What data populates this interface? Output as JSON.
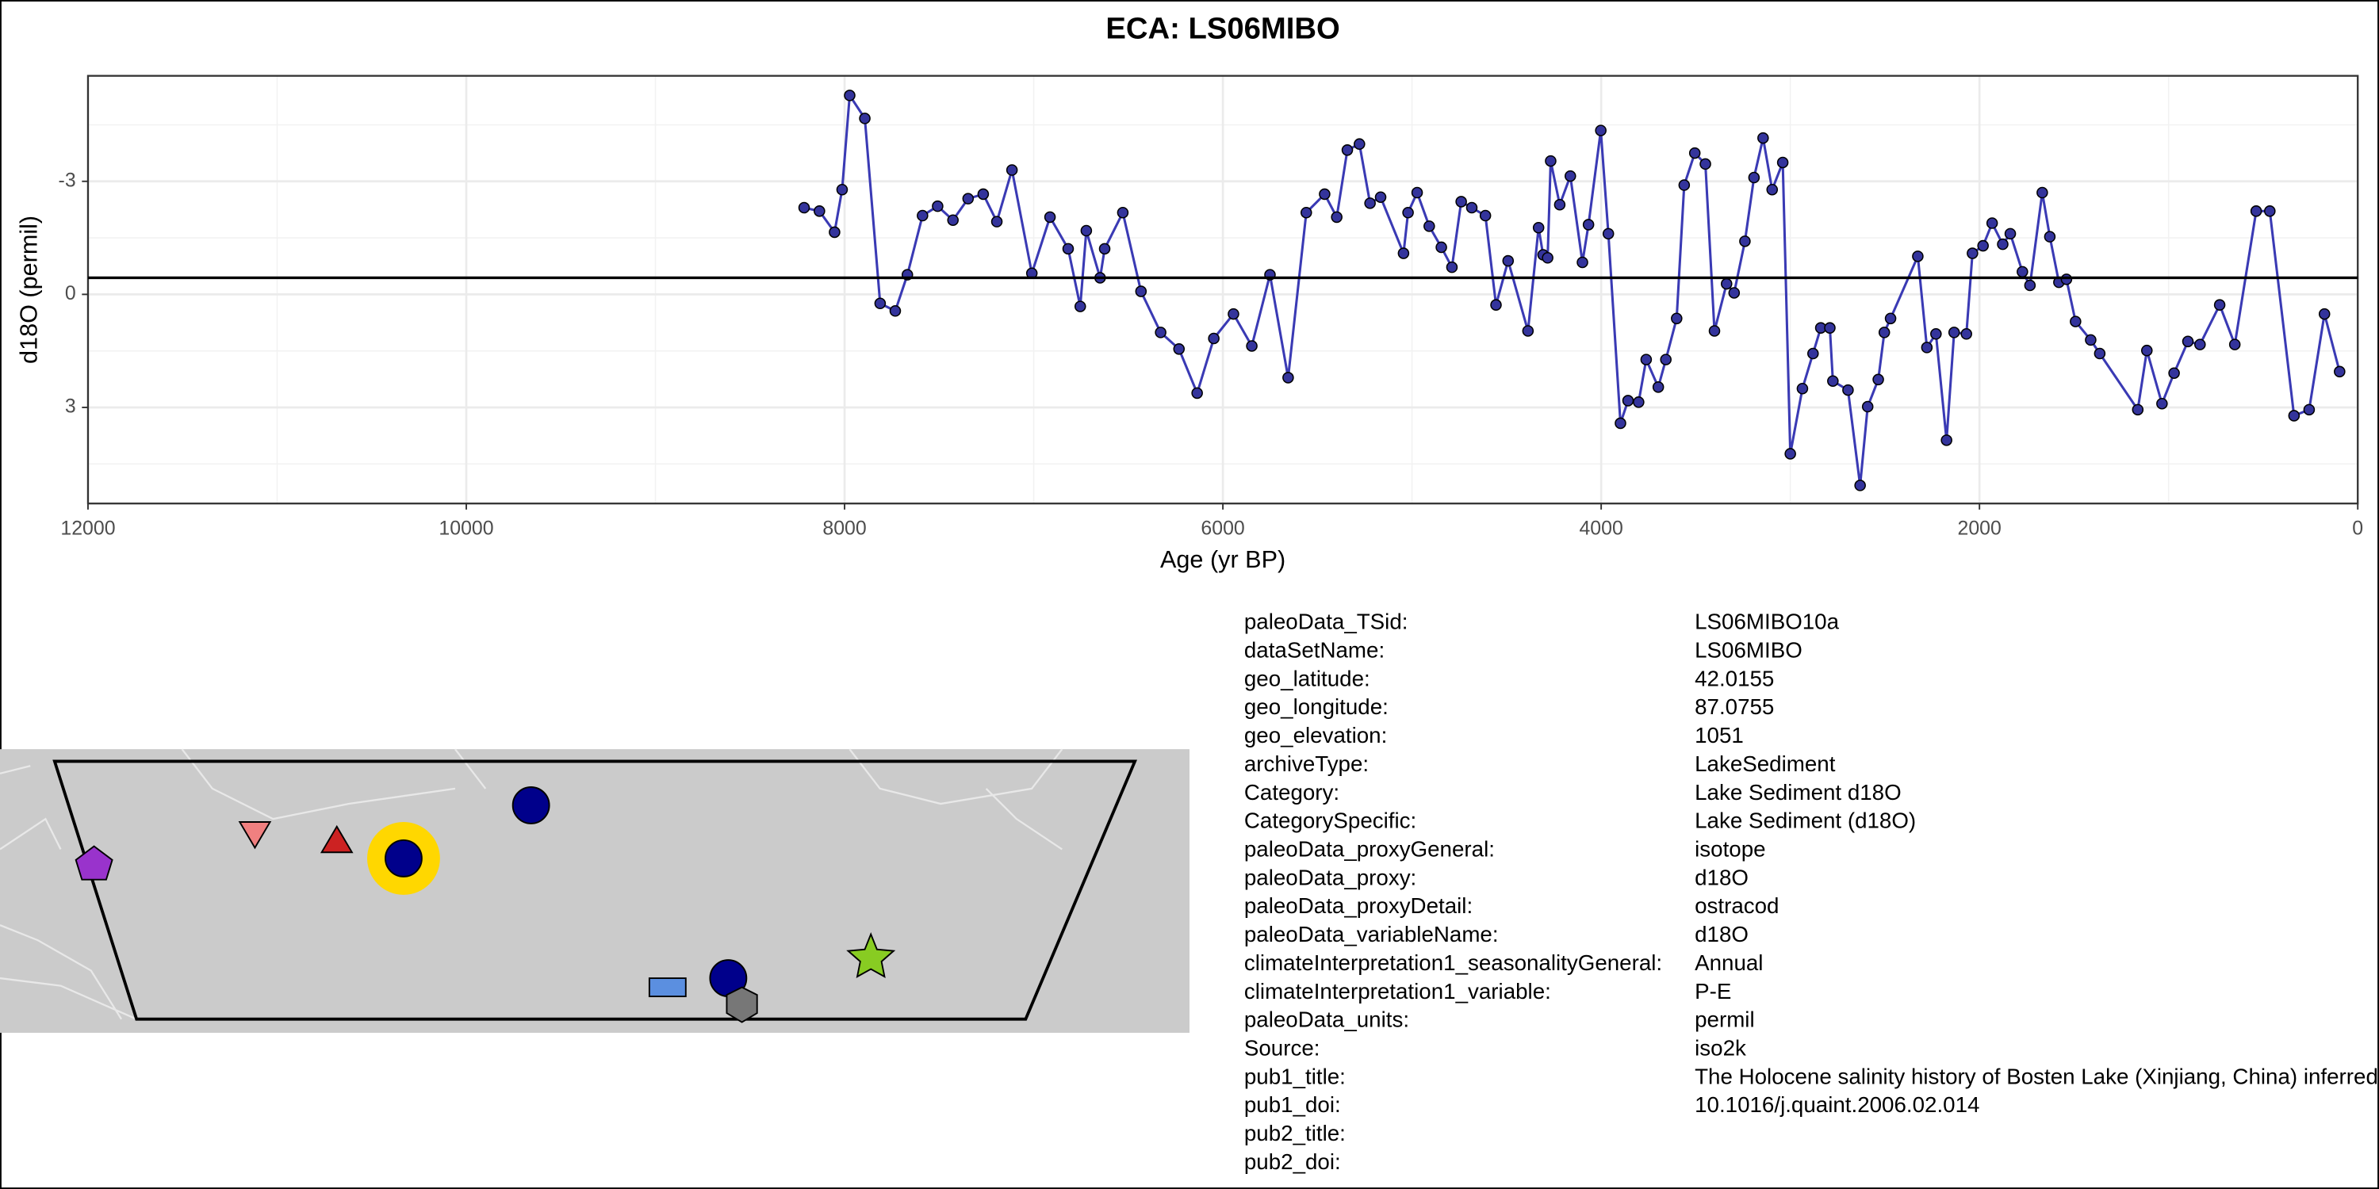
{
  "chart_data": {
    "type": "line",
    "title": "ECA: LS06MIBO",
    "x_label": "Age (yr BP)",
    "y_label": "d18O (permil)",
    "xlim": [
      12000,
      0
    ],
    "ylim": [
      5.55,
      -5.8
    ],
    "xticks": [
      12000,
      10000,
      8000,
      6000,
      4000,
      2000,
      0
    ],
    "yticks": [
      -3,
      0,
      3
    ],
    "x_minor_ticks": [
      11000,
      9000,
      7000,
      5000,
      3000,
      1000
    ],
    "y_minor_ticks": [
      -4.5,
      -1.5,
      1.5,
      4.5
    ],
    "grid": true,
    "mean_line": -0.44,
    "x": [
      8214,
      8133,
      8053,
      8013,
      7973,
      7893,
      7812,
      7732,
      7668,
      7588,
      7508,
      7427,
      7347,
      7267,
      7195,
      7115,
      7010,
      6914,
      6818,
      6754,
      6722,
      6649,
      6625,
      6529,
      6433,
      6329,
      6232,
      6136,
      6048,
      5944,
      5847,
      5751,
      5655,
      5559,
      5462,
      5398,
      5342,
      5278,
      5222,
      5166,
      5045,
      5021,
      4973,
      4909,
      4845,
      4789,
      4740,
      4684,
      4612,
      4556,
      4492,
      4387,
      4331,
      4307,
      4283,
      4267,
      4219,
      4163,
      4099,
      4067,
      4002,
      3962,
      3898,
      3858,
      3802,
      3762,
      3698,
      3658,
      3601,
      3561,
      3505,
      3449,
      3401,
      3337,
      3297,
      3240,
      3192,
      3144,
      3096,
      3040,
      3000,
      2936,
      2880,
      2839,
      2791,
      2775,
      2695,
      2631,
      2591,
      2535,
      2503,
      2470,
      2326,
      2278,
      2230,
      2174,
      2134,
      2069,
      2037,
      1981,
      1933,
      1877,
      1837,
      1773,
      1733,
      1668,
      1628,
      1580,
      1540,
      1492,
      1412,
      1364,
      1163,
      1115,
      1035,
      971,
      898,
      834,
      730,
      650,
      537,
      465,
      337,
      257,
      176,
      96
    ],
    "series": [
      {
        "color": "#3a3ab4",
        "marker_color": "#34349c",
        "values": [
          -2.3,
          -2.21,
          -1.65,
          -2.78,
          -5.28,
          -4.67,
          0.24,
          0.44,
          -0.52,
          -2.09,
          -2.34,
          -1.97,
          -2.54,
          -2.66,
          -1.93,
          -3.3,
          -0.56,
          -2.05,
          -1.21,
          0.32,
          -1.69,
          -0.44,
          -1.21,
          -2.17,
          -0.08,
          1.01,
          1.45,
          2.62,
          1.17,
          0.52,
          1.37,
          -0.52,
          2.21,
          -2.17,
          -2.66,
          -2.05,
          -3.83,
          -3.99,
          -2.42,
          -2.58,
          -1.09,
          -2.17,
          -2.7,
          -1.81,
          -1.25,
          -0.72,
          -2.46,
          -2.3,
          -2.09,
          0.28,
          -0.89,
          0.97,
          -1.77,
          -1.05,
          -0.97,
          -3.54,
          -2.38,
          -3.14,
          -0.85,
          -1.85,
          -4.35,
          -1.61,
          3.42,
          2.82,
          2.86,
          1.73,
          2.46,
          1.73,
          0.64,
          -2.9,
          -3.75,
          -3.46,
          0.97,
          -0.28,
          -0.04,
          -1.41,
          -3.1,
          -4.15,
          -2.78,
          -3.5,
          4.23,
          2.5,
          1.57,
          0.89,
          0.89,
          2.3,
          2.54,
          5.07,
          2.98,
          2.26,
          1.01,
          0.64,
          -1.01,
          1.41,
          1.05,
          3.87,
          1.01,
          1.05,
          -1.09,
          -1.29,
          -1.89,
          -1.33,
          -1.61,
          -0.6,
          -0.24,
          -2.7,
          -1.53,
          -0.32,
          -0.4,
          0.72,
          1.21,
          1.57,
          3.06,
          1.49,
          2.9,
          2.09,
          1.25,
          1.33,
          0.28,
          1.33,
          -2.21,
          -2.21,
          3.22,
          3.06,
          0.52,
          2.05
        ]
      }
    ]
  },
  "metadata": [
    {
      "key": "paleoData_TSid:",
      "value": "LS06MIBO10a"
    },
    {
      "key": "dataSetName:",
      "value": "LS06MIBO"
    },
    {
      "key": "geo_latitude:",
      "value": "42.0155"
    },
    {
      "key": "geo_longitude:",
      "value": "87.0755"
    },
    {
      "key": "geo_elevation:",
      "value": "1051"
    },
    {
      "key": "archiveType:",
      "value": "LakeSediment"
    },
    {
      "key": "Category:",
      "value": "Lake Sediment d18O"
    },
    {
      "key": "CategorySpecific:",
      "value": "Lake Sediment (d18O)"
    },
    {
      "key": "paleoData_proxyGeneral:",
      "value": "isotope"
    },
    {
      "key": "paleoData_proxy:",
      "value": "d18O"
    },
    {
      "key": "paleoData_proxyDetail:",
      "value": "ostracod"
    },
    {
      "key": "paleoData_variableName:",
      "value": "d18O"
    },
    {
      "key": "climateInterpretation1_seasonalityGeneral:",
      "value": "Annual"
    },
    {
      "key": "climateInterpretation1_variable:",
      "value": "P-E"
    },
    {
      "key": "paleoData_units:",
      "value": "permil"
    },
    {
      "key": "Source:",
      "value": "iso2k"
    },
    {
      "key": "pub1_title:",
      "value": "The Holocene salinity history of Bosten Lake (Xinjiang, China) inferred from ostracod species assemblages and shell chemistry"
    },
    {
      "key": "pub1_doi:",
      "value": "10.1016/j.quaint.2006.02.014"
    },
    {
      "key": "pub2_title:"
    },
    {
      "key": "pub2_doi:"
    }
  ]
}
